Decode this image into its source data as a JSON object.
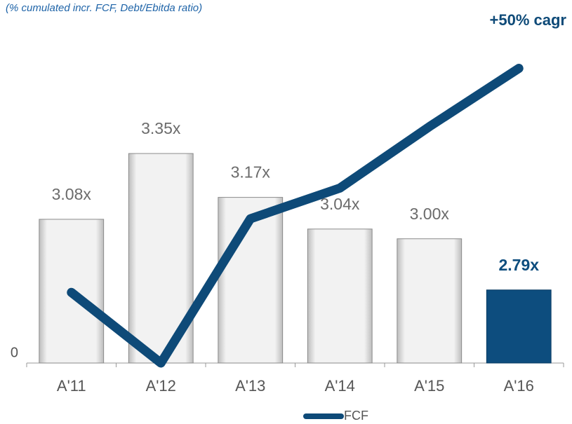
{
  "chart_data": {
    "type": "bar-line",
    "subtitle": "(% cumulated incr. FCF, Debt/Ebitda ratio)",
    "annotation": "+50% cagr",
    "categories": [
      "A'11",
      "A'12",
      "A'13",
      "A'14",
      "A'15",
      "A'16"
    ],
    "ylim": [
      0,
      100
    ],
    "yticks": [
      0
    ],
    "y2lim": [
      2.49,
      3.75
    ],
    "series": [
      {
        "name": "Debt/Ebitda",
        "type": "bar",
        "axis": "y2",
        "values": [
          3.08,
          3.35,
          3.17,
          3.04,
          3.0,
          2.79
        ],
        "value_labels": [
          "3.08x",
          "3.35x",
          "3.17x",
          "3.04x",
          "3.00x",
          "2.79x"
        ],
        "colors": [
          "#e4e4e4",
          "#e4e4e4",
          "#e4e4e4",
          "#e4e4e4",
          "#e4e4e4",
          "#0d4d7e"
        ],
        "label_colors": [
          "#6b6b6b",
          "#6b6b6b",
          "#6b6b6b",
          "#6b6b6b",
          "#6b6b6b",
          "#0d4d7e"
        ]
      },
      {
        "name": "FCF",
        "type": "line",
        "color": "#0e4a78",
        "values": [
          23,
          0,
          47,
          57,
          77,
          96
        ]
      }
    ],
    "legend": "bottom"
  }
}
